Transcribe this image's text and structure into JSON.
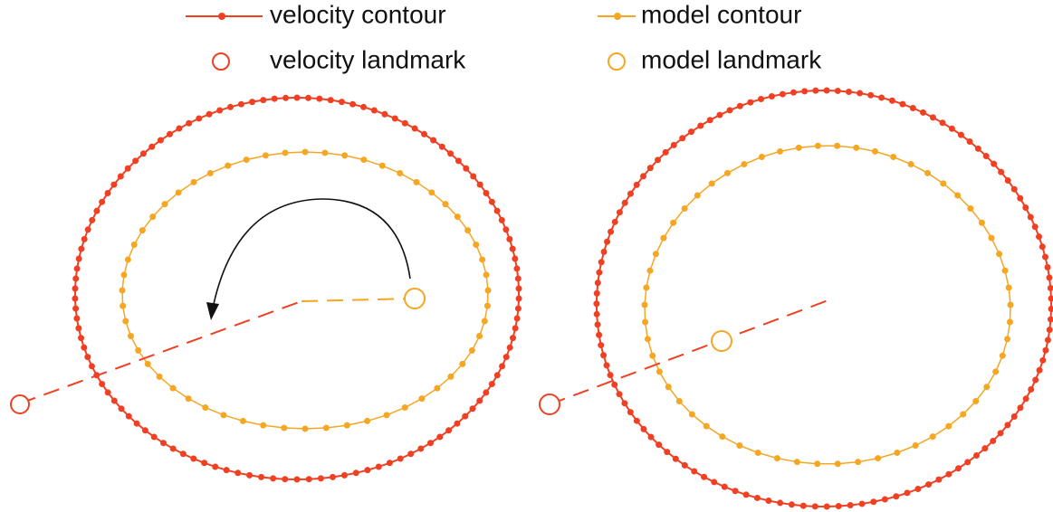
{
  "legend": {
    "items": [
      {
        "label": "velocity contour"
      },
      {
        "label": "model contour"
      },
      {
        "label": "velocity landmark"
      },
      {
        "label": "model landmark"
      }
    ]
  }
}
